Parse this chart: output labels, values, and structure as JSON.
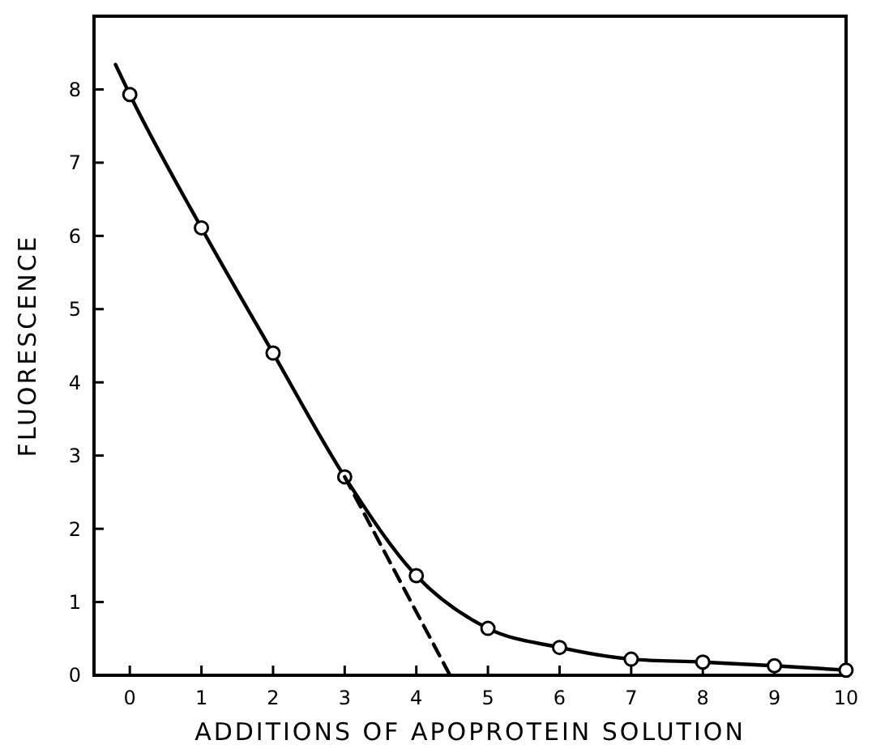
{
  "chart_data": {
    "type": "line",
    "xlabel": "ADDITIONS OF APOPROTEIN SOLUTION",
    "ylabel": "FLUORESCENCE",
    "xlim": [
      -0.5,
      10
    ],
    "ylim": [
      0,
      9
    ],
    "xticks": [
      0,
      1,
      2,
      3,
      4,
      5,
      6,
      7,
      8,
      9,
      10
    ],
    "yticks": [
      0,
      1,
      2,
      3,
      4,
      5,
      6,
      7,
      8
    ],
    "grid": false,
    "series": [
      {
        "color": "#000000",
        "marker": "none",
        "line_style": "solid",
        "x": [
          -0.2,
          0,
          1,
          2,
          3,
          4,
          5,
          6,
          7,
          8,
          9,
          10
        ],
        "values": [
          8.34,
          7.93,
          6.11,
          4.4,
          2.71,
          1.36,
          0.64,
          0.38,
          0.22,
          0.18,
          0.13,
          0.07
        ]
      },
      {
        "type": "scatter",
        "color": "#000000",
        "marker": "circle",
        "x": [
          0,
          1,
          2,
          3,
          4,
          5,
          6,
          7,
          8,
          9,
          10
        ],
        "values": [
          7.93,
          6.11,
          4.4,
          2.71,
          1.36,
          0.64,
          0.38,
          0.22,
          0.18,
          0.13,
          0.07
        ]
      },
      {
        "color": "#000000",
        "marker": "none",
        "line_style": "dashed",
        "x": [
          3,
          4.47
        ],
        "values": [
          2.71,
          0
        ]
      }
    ]
  }
}
